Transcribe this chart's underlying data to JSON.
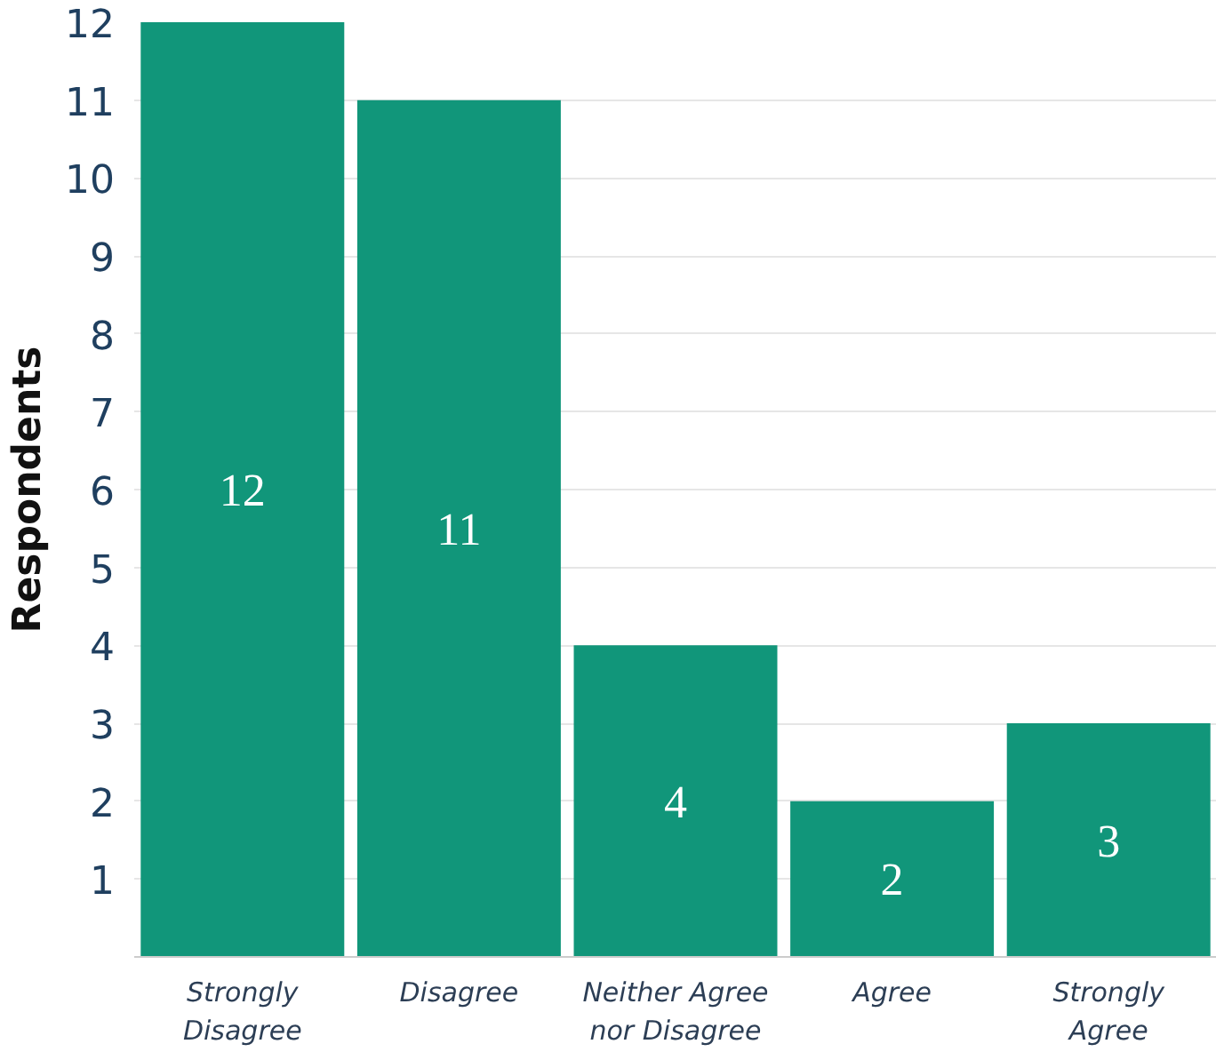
{
  "chart_data": {
    "type": "bar",
    "ylabel": "Respondents",
    "categories": [
      "Strongly Disagree",
      "Disagree",
      "Neither Agree nor Disagree",
      "Agree",
      "Strongly Agree"
    ],
    "values": [
      12,
      11,
      4,
      2,
      3
    ],
    "color": "#11967a",
    "ylim": [
      0,
      12
    ],
    "yticks": [
      1,
      2,
      3,
      4,
      5,
      6,
      7,
      8,
      9,
      10,
      11,
      12
    ],
    "grid": "y",
    "data_labels": true
  }
}
